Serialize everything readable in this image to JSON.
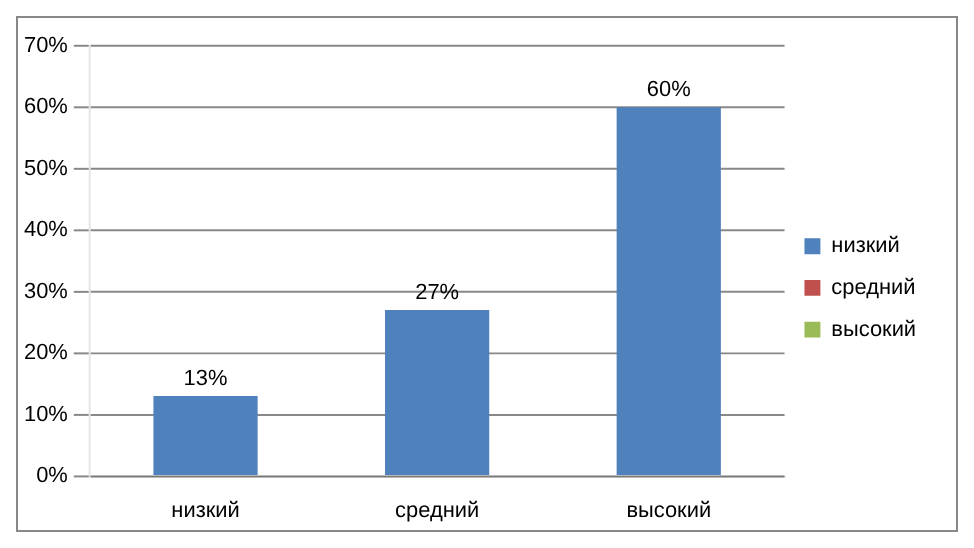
{
  "chart_data": {
    "type": "bar",
    "categories": [
      "низкий",
      "средний",
      "высокий"
    ],
    "series": [
      {
        "name": "низкий",
        "color": "#4f81bd",
        "values": [
          13,
          27,
          60
        ],
        "value_labels": [
          "13%",
          "27%",
          "60%"
        ]
      },
      {
        "name": "средний",
        "color": "#c0504d",
        "values": [
          null,
          null,
          null
        ]
      },
      {
        "name": "высокий",
        "color": "#9bbb59",
        "values": [
          null,
          null,
          null
        ]
      }
    ],
    "ylim": [
      0,
      70
    ],
    "yticks": [
      {
        "value": 0,
        "label": "0%"
      },
      {
        "value": 10,
        "label": "10%"
      },
      {
        "value": 20,
        "label": "20%"
      },
      {
        "value": 30,
        "label": "30%"
      },
      {
        "value": 40,
        "label": "40%"
      },
      {
        "value": 50,
        "label": "50%"
      },
      {
        "value": 60,
        "label": "60%"
      },
      {
        "value": 70,
        "label": "70%"
      }
    ],
    "grid": "y",
    "legend": "right"
  }
}
